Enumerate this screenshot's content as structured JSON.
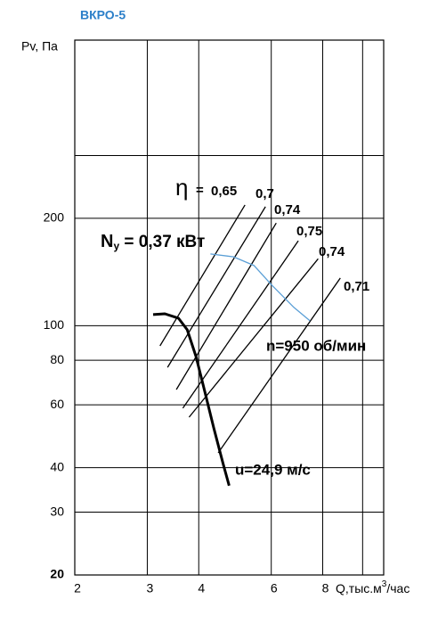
{
  "chart_data": {
    "type": "line",
    "title": "ВКРО-5",
    "y_label": "Pv, Па",
    "x_label": {
      "main": "Q,тыс.м",
      "sup": "3",
      "tail": "/час"
    },
    "log_x": true,
    "log_y": true,
    "grid": true,
    "xlim": [
      2,
      11.25
    ],
    "ylim": [
      20,
      632
    ],
    "xticks": [
      2,
      3,
      4,
      6,
      8,
      {
        "value": 10,
        "label": null
      }
    ],
    "yticks": [
      20,
      30,
      40,
      60,
      80,
      100,
      200,
      {
        "value": 300,
        "label": null
      }
    ],
    "series": [
      {
        "name": "u=24,9 м/с",
        "color": "#000000",
        "x": [
          3.1,
          3.31,
          3.57,
          3.75,
          3.94,
          4.14,
          4.35,
          4.58,
          4.74
        ],
        "values": [
          107.4,
          108,
          105,
          97.4,
          81.9,
          65.1,
          51.7,
          41.1,
          35.6
        ]
      },
      {
        "name": "n=950 об/мин",
        "color": "#5b9fd6",
        "x": [
          4.27,
          4.86,
          5.45,
          6.02,
          6.81,
          7.45
        ],
        "values": [
          158.9,
          156,
          147.4,
          129.9,
          112.5,
          103.2
        ]
      }
    ],
    "power_label": {
      "main": "N",
      "sub": "у",
      "tail": " = 0,37 кВт"
    },
    "efficiency": {
      "symbol": "η",
      "prefix": "=",
      "lines": [
        {
          "label": "0,65",
          "x": [
            3.22,
            5.18
          ],
          "values": [
            87.8,
            218
          ]
        },
        {
          "label": "0,7",
          "x": [
            3.36,
            5.81
          ],
          "values": [
            76.4,
            215.6
          ]
        },
        {
          "label": "0,74",
          "x": [
            3.53,
            6.17
          ],
          "values": [
            66.2,
            194
          ]
        },
        {
          "label": "0,75",
          "x": [
            3.66,
            6.98
          ],
          "values": [
            58.7,
            173
          ]
        },
        {
          "label": "0,74",
          "x": [
            3.79,
            7.8
          ],
          "values": [
            55.4,
            154
          ]
        },
        {
          "label": "0,71",
          "x": [
            4.46,
            8.83
          ],
          "values": [
            44.0,
            136
          ]
        }
      ]
    }
  }
}
